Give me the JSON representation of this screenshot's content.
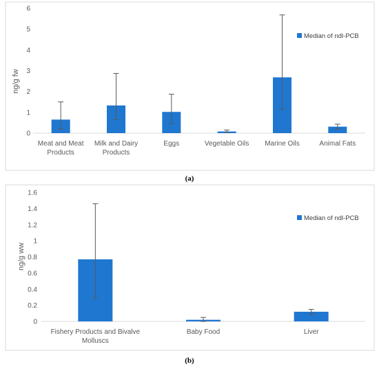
{
  "chart_data": [
    {
      "type": "bar",
      "panel_label": "(a)",
      "categories": [
        "Meat and Meat Products",
        "Milk and Dairy Products",
        "Eggs",
        "Vegetable Oils",
        "Marine Oils",
        "Animal Fats"
      ],
      "category_lines": [
        [
          "Meat and Meat",
          "Products"
        ],
        [
          "Milk and Dairy",
          "Products"
        ],
        [
          "Eggs"
        ],
        [
          "Vegetable Oils"
        ],
        [
          "Marine Oils"
        ],
        [
          "Animal Fats"
        ]
      ],
      "series": [
        {
          "name": "Median of ndl-PCB",
          "values": [
            0.65,
            1.33,
            1.02,
            0.08,
            2.68,
            0.31
          ],
          "error_low": [
            0.2,
            0.65,
            0.45,
            0.04,
            1.15,
            0.2
          ],
          "error_high": [
            1.5,
            2.87,
            1.87,
            0.15,
            5.68,
            0.43
          ]
        }
      ],
      "ylabel": "ng/g fw",
      "ylim": [
        0,
        6
      ],
      "yticks": [
        "0",
        "1",
        "2",
        "3",
        "4",
        "5",
        "6"
      ],
      "legend_position": "right",
      "color": "#1f77d0"
    },
    {
      "type": "bar",
      "panel_label": "(b)",
      "categories": [
        "Fishery Products and Bivalve Molluscs",
        "Baby Food",
        "Liver"
      ],
      "category_lines": [
        [
          "Fishery Products and Bivalve",
          "Molluscs"
        ],
        [
          "Baby Food"
        ],
        [
          "Liver"
        ]
      ],
      "series": [
        {
          "name": "Median of ndl-PCB",
          "values": [
            0.77,
            0.02,
            0.12
          ],
          "error_low": [
            0.29,
            0.0,
            0.09
          ],
          "error_high": [
            1.46,
            0.05,
            0.15
          ]
        }
      ],
      "ylabel": "ng/g ww",
      "ylim": [
        0,
        1.6
      ],
      "yticks": [
        "0",
        "0.2",
        "0.4",
        "0.6",
        "0.8",
        "1",
        "1.2",
        "1.4",
        "1.6"
      ],
      "legend_position": "right",
      "color": "#1f77d0"
    }
  ]
}
